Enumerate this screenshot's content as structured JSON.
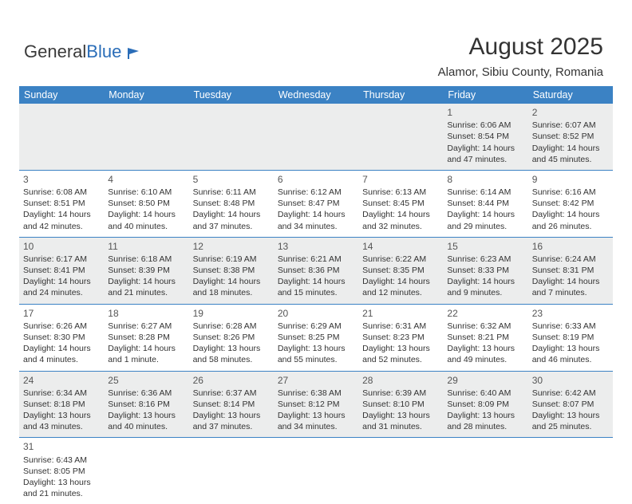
{
  "logo": {
    "part1": "General",
    "part2": "Blue"
  },
  "title": "August 2025",
  "subtitle": "Alamor, Sibiu County, Romania",
  "colors": {
    "header_bg": "#3b82c4",
    "header_text": "#ffffff",
    "row_alt_bg": "#eceded",
    "border": "#3b82c4",
    "text": "#333333",
    "logo_blue": "#2a6db8"
  },
  "fontsize": {
    "title": 30,
    "subtitle": 15,
    "th": 12.5,
    "cell": 10.5,
    "daynum": 12
  },
  "dayHeaders": [
    "Sunday",
    "Monday",
    "Tuesday",
    "Wednesday",
    "Thursday",
    "Friday",
    "Saturday"
  ],
  "weeks": [
    [
      null,
      null,
      null,
      null,
      null,
      {
        "n": "1",
        "sr": "Sunrise: 6:06 AM",
        "ss": "Sunset: 8:54 PM",
        "d1": "Daylight: 14 hours",
        "d2": "and 47 minutes."
      },
      {
        "n": "2",
        "sr": "Sunrise: 6:07 AM",
        "ss": "Sunset: 8:52 PM",
        "d1": "Daylight: 14 hours",
        "d2": "and 45 minutes."
      }
    ],
    [
      {
        "n": "3",
        "sr": "Sunrise: 6:08 AM",
        "ss": "Sunset: 8:51 PM",
        "d1": "Daylight: 14 hours",
        "d2": "and 42 minutes."
      },
      {
        "n": "4",
        "sr": "Sunrise: 6:10 AM",
        "ss": "Sunset: 8:50 PM",
        "d1": "Daylight: 14 hours",
        "d2": "and 40 minutes."
      },
      {
        "n": "5",
        "sr": "Sunrise: 6:11 AM",
        "ss": "Sunset: 8:48 PM",
        "d1": "Daylight: 14 hours",
        "d2": "and 37 minutes."
      },
      {
        "n": "6",
        "sr": "Sunrise: 6:12 AM",
        "ss": "Sunset: 8:47 PM",
        "d1": "Daylight: 14 hours",
        "d2": "and 34 minutes."
      },
      {
        "n": "7",
        "sr": "Sunrise: 6:13 AM",
        "ss": "Sunset: 8:45 PM",
        "d1": "Daylight: 14 hours",
        "d2": "and 32 minutes."
      },
      {
        "n": "8",
        "sr": "Sunrise: 6:14 AM",
        "ss": "Sunset: 8:44 PM",
        "d1": "Daylight: 14 hours",
        "d2": "and 29 minutes."
      },
      {
        "n": "9",
        "sr": "Sunrise: 6:16 AM",
        "ss": "Sunset: 8:42 PM",
        "d1": "Daylight: 14 hours",
        "d2": "and 26 minutes."
      }
    ],
    [
      {
        "n": "10",
        "sr": "Sunrise: 6:17 AM",
        "ss": "Sunset: 8:41 PM",
        "d1": "Daylight: 14 hours",
        "d2": "and 24 minutes."
      },
      {
        "n": "11",
        "sr": "Sunrise: 6:18 AM",
        "ss": "Sunset: 8:39 PM",
        "d1": "Daylight: 14 hours",
        "d2": "and 21 minutes."
      },
      {
        "n": "12",
        "sr": "Sunrise: 6:19 AM",
        "ss": "Sunset: 8:38 PM",
        "d1": "Daylight: 14 hours",
        "d2": "and 18 minutes."
      },
      {
        "n": "13",
        "sr": "Sunrise: 6:21 AM",
        "ss": "Sunset: 8:36 PM",
        "d1": "Daylight: 14 hours",
        "d2": "and 15 minutes."
      },
      {
        "n": "14",
        "sr": "Sunrise: 6:22 AM",
        "ss": "Sunset: 8:35 PM",
        "d1": "Daylight: 14 hours",
        "d2": "and 12 minutes."
      },
      {
        "n": "15",
        "sr": "Sunrise: 6:23 AM",
        "ss": "Sunset: 8:33 PM",
        "d1": "Daylight: 14 hours",
        "d2": "and 9 minutes."
      },
      {
        "n": "16",
        "sr": "Sunrise: 6:24 AM",
        "ss": "Sunset: 8:31 PM",
        "d1": "Daylight: 14 hours",
        "d2": "and 7 minutes."
      }
    ],
    [
      {
        "n": "17",
        "sr": "Sunrise: 6:26 AM",
        "ss": "Sunset: 8:30 PM",
        "d1": "Daylight: 14 hours",
        "d2": "and 4 minutes."
      },
      {
        "n": "18",
        "sr": "Sunrise: 6:27 AM",
        "ss": "Sunset: 8:28 PM",
        "d1": "Daylight: 14 hours",
        "d2": "and 1 minute."
      },
      {
        "n": "19",
        "sr": "Sunrise: 6:28 AM",
        "ss": "Sunset: 8:26 PM",
        "d1": "Daylight: 13 hours",
        "d2": "and 58 minutes."
      },
      {
        "n": "20",
        "sr": "Sunrise: 6:29 AM",
        "ss": "Sunset: 8:25 PM",
        "d1": "Daylight: 13 hours",
        "d2": "and 55 minutes."
      },
      {
        "n": "21",
        "sr": "Sunrise: 6:31 AM",
        "ss": "Sunset: 8:23 PM",
        "d1": "Daylight: 13 hours",
        "d2": "and 52 minutes."
      },
      {
        "n": "22",
        "sr": "Sunrise: 6:32 AM",
        "ss": "Sunset: 8:21 PM",
        "d1": "Daylight: 13 hours",
        "d2": "and 49 minutes."
      },
      {
        "n": "23",
        "sr": "Sunrise: 6:33 AM",
        "ss": "Sunset: 8:19 PM",
        "d1": "Daylight: 13 hours",
        "d2": "and 46 minutes."
      }
    ],
    [
      {
        "n": "24",
        "sr": "Sunrise: 6:34 AM",
        "ss": "Sunset: 8:18 PM",
        "d1": "Daylight: 13 hours",
        "d2": "and 43 minutes."
      },
      {
        "n": "25",
        "sr": "Sunrise: 6:36 AM",
        "ss": "Sunset: 8:16 PM",
        "d1": "Daylight: 13 hours",
        "d2": "and 40 minutes."
      },
      {
        "n": "26",
        "sr": "Sunrise: 6:37 AM",
        "ss": "Sunset: 8:14 PM",
        "d1": "Daylight: 13 hours",
        "d2": "and 37 minutes."
      },
      {
        "n": "27",
        "sr": "Sunrise: 6:38 AM",
        "ss": "Sunset: 8:12 PM",
        "d1": "Daylight: 13 hours",
        "d2": "and 34 minutes."
      },
      {
        "n": "28",
        "sr": "Sunrise: 6:39 AM",
        "ss": "Sunset: 8:10 PM",
        "d1": "Daylight: 13 hours",
        "d2": "and 31 minutes."
      },
      {
        "n": "29",
        "sr": "Sunrise: 6:40 AM",
        "ss": "Sunset: 8:09 PM",
        "d1": "Daylight: 13 hours",
        "d2": "and 28 minutes."
      },
      {
        "n": "30",
        "sr": "Sunrise: 6:42 AM",
        "ss": "Sunset: 8:07 PM",
        "d1": "Daylight: 13 hours",
        "d2": "and 25 minutes."
      }
    ],
    [
      {
        "n": "31",
        "sr": "Sunrise: 6:43 AM",
        "ss": "Sunset: 8:05 PM",
        "d1": "Daylight: 13 hours",
        "d2": "and 21 minutes."
      },
      null,
      null,
      null,
      null,
      null,
      null
    ]
  ]
}
